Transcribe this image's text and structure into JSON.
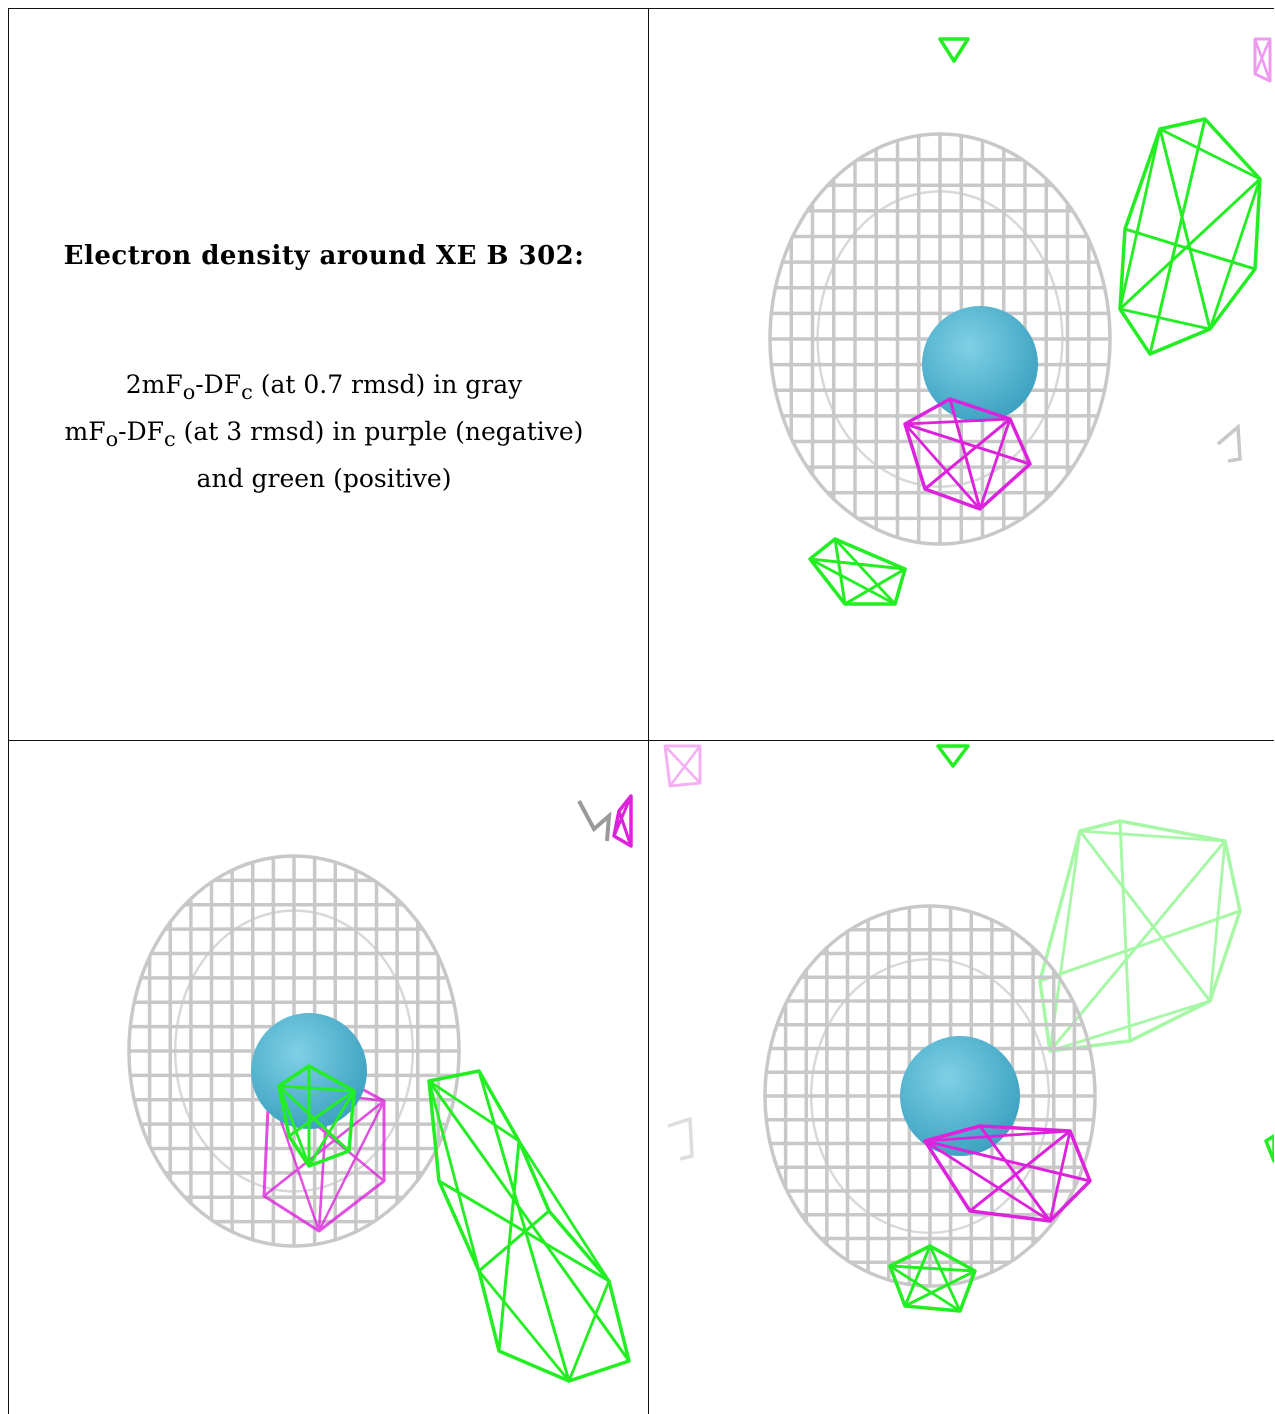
{
  "caption": {
    "title": "Electron density around XE B 302:",
    "line1": {
      "a": "2mF",
      "a_sub": "o",
      "b": "-DF",
      "b_sub": "c",
      "rest": " (at 0.7 rmsd) in gray"
    },
    "line2": {
      "a": "mF",
      "a_sub": "o",
      "b": "-DF",
      "b_sub": "c",
      "rest": " (at 3 rmsd) in purple (negative)"
    },
    "line3": "and green (positive)"
  },
  "colors": {
    "gray_mesh": "#c8c8c8",
    "gray_mesh_dark": "#9a9a9a",
    "purple_mesh": "#dd22dd",
    "green_mesh": "#22ee22",
    "atom": "#3aa0bf",
    "atom_highlight": "#7fd0e6",
    "rule": "#111111"
  },
  "panels": [
    {
      "id": "view-1",
      "atom": "xenon-atom"
    },
    {
      "id": "view-2",
      "atom": "xenon-atom"
    },
    {
      "id": "view-3",
      "atom": "xenon-atom"
    }
  ]
}
